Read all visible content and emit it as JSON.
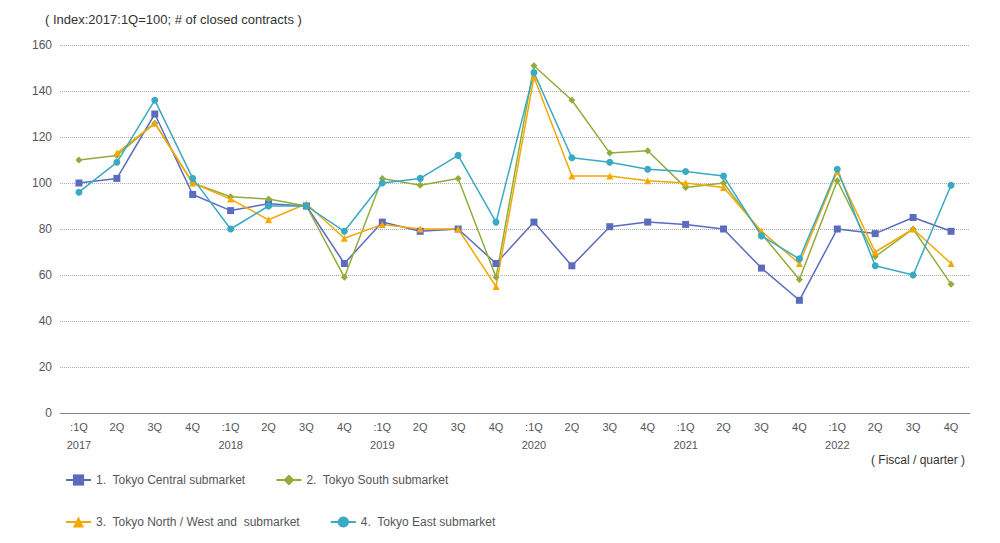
{
  "chart_data": {
    "type": "line",
    "title": "( Index:2017:1Q=100; # of closed contracts )",
    "xlabel": "( Fiscal / quarter )",
    "categories": [
      ":1Q",
      "2Q",
      "3Q",
      "4Q",
      ":1Q",
      "2Q",
      "3Q",
      "4Q",
      ":1Q",
      "2Q",
      "3Q",
      "4Q",
      ":1Q",
      "2Q",
      "3Q",
      "4Q",
      ":1Q",
      "2Q",
      "3Q",
      "4Q",
      ":1Q",
      "2Q",
      "3Q",
      "4Q"
    ],
    "series": [
      {
        "name": "1.  Tokyo Central submarket",
        "color": "#5b6bbd",
        "marker": "square",
        "values": [
          100,
          102,
          130,
          95,
          88,
          91,
          90,
          65,
          83,
          79,
          80,
          65,
          83,
          64,
          81,
          83,
          82,
          80,
          63,
          49,
          80,
          78,
          85,
          79
        ]
      },
      {
        "name": "2.  Tokyo South submarket",
        "color": "#8fad3c",
        "marker": "diamond",
        "values": [
          110,
          112,
          126,
          100,
          94,
          93,
          90,
          59,
          102,
          99,
          102,
          59,
          151,
          136,
          113,
          114,
          98,
          100,
          78,
          58,
          101,
          68,
          80,
          56
        ]
      },
      {
        "name": "3.  Tokyo North / West and  submarket",
        "color": "#f5a800",
        "marker": "triangle",
        "values": [
          null,
          113,
          126,
          100,
          93,
          84,
          91,
          76,
          82,
          80,
          80,
          55,
          146,
          103,
          103,
          101,
          100,
          98,
          79,
          65,
          105,
          70,
          80,
          65
        ]
      },
      {
        "name": "4.  Tokyo East submarket",
        "color": "#39a9c4",
        "marker": "circle",
        "values": [
          96,
          109,
          136,
          102,
          80,
          90,
          90,
          79,
          100,
          102,
          112,
          83,
          148,
          111,
          109,
          106,
          105,
          103,
          77,
          67,
          106,
          64,
          60,
          99
        ]
      }
    ],
    "annotations": [
      {
        "text": "2017",
        "x": 0
      },
      {
        "text": "2018",
        "x": 4
      },
      {
        "text": "2019",
        "x": 8
      },
      {
        "text": "2020",
        "x": 12
      },
      {
        "text": "2021",
        "x": 16
      },
      {
        "text": "2022",
        "x": 20
      }
    ],
    "ylim": [
      0,
      160
    ],
    "yticks": [
      0,
      20,
      40,
      60,
      80,
      100,
      120,
      140,
      160
    ],
    "grid": true,
    "legend": "lower left"
  }
}
